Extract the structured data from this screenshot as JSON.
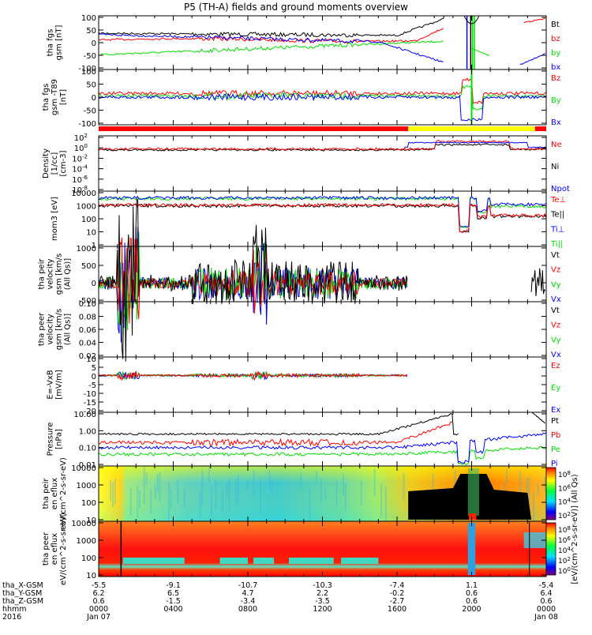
{
  "title": "P5 (TH-A) fields and ground moments overview",
  "time_axis": {
    "tick_hours": [
      0,
      4,
      8,
      12,
      16,
      20,
      24
    ],
    "rows": [
      {
        "label": "tha_X-GSM",
        "values": [
          "-5.5",
          "-9.1",
          "-10.7",
          "-10.3",
          "-7.4",
          "1.1",
          "-5.4"
        ]
      },
      {
        "label": "tha_Y-GSM",
        "values": [
          "6.2",
          "6.5",
          "4.7",
          "2.2",
          "-0.2",
          "0.6",
          "6.4"
        ]
      },
      {
        "label": "tha_Z-GSM",
        "values": [
          "0.6",
          "-1.5",
          "-3.4",
          "-3.5",
          "-2.7",
          "0.6",
          "0.6"
        ]
      },
      {
        "label": "hhmm",
        "values": [
          "0000",
          "0400",
          "0800",
          "1200",
          "1600",
          "2000",
          "0000"
        ]
      },
      {
        "label": "2016",
        "values": [
          "Jan 07",
          "",
          "",
          "",
          "",
          "",
          "Jan 08"
        ]
      }
    ]
  },
  "colors": {
    "black": "#000000",
    "red": "#ff0000",
    "green": "#00e000",
    "blue": "#0000ff",
    "yellow": "#ffff00"
  },
  "chart_data": [
    {
      "type": "line",
      "ylabel": "tha fgs gsm [nT]",
      "ylim": [
        -100,
        100
      ],
      "yticks": [
        "100",
        "50",
        "0",
        "-50",
        "-100"
      ],
      "legend": [
        "Bt",
        "bz",
        "by",
        "bx"
      ],
      "legend_colors": [
        "black",
        "red",
        "green",
        "blue"
      ]
    },
    {
      "type": "line",
      "ylabel": "tha fgs gsm -T89 [nT]",
      "ylim": [
        -120,
        100
      ],
      "yticks": [
        "100",
        "50",
        "0",
        "-50",
        "-100"
      ],
      "legend": [
        "Bz",
        "By",
        "Bx"
      ],
      "legend_colors": [
        "red",
        "green",
        "blue"
      ]
    },
    {
      "type": "bar",
      "flag": [
        {
          "from_hour": 0,
          "to_hour": 16.6,
          "color": "red"
        },
        {
          "from_hour": 16.6,
          "to_hour": 23.4,
          "color": "yellow"
        },
        {
          "from_hour": 23.4,
          "to_hour": 24,
          "color": "red"
        }
      ]
    },
    {
      "type": "line",
      "scale": "log",
      "ylabel": "Density [1/cc] [cm-3]",
      "yticks": [
        "10^2",
        "10^0",
        "10^-2",
        "10^-4",
        "10^-6",
        "10^-8"
      ],
      "legend": [
        "Ne",
        "Ni",
        "Npot"
      ],
      "legend_colors": [
        "red",
        "black",
        "blue"
      ]
    },
    {
      "type": "line",
      "scale": "log",
      "ylabel": "mom3 [eV]",
      "yticks": [
        "10000",
        "1000",
        "100",
        "10",
        "1"
      ],
      "legend": [
        "Te⊥",
        "Te||",
        "Ti⊥",
        "Ti||"
      ],
      "legend_colors": [
        "red",
        "black",
        "blue",
        "green"
      ]
    },
    {
      "type": "line",
      "ylabel": "tha peir velocity gsm [km/s (All Qs)]",
      "ylim": [
        -500,
        1000
      ],
      "yticks": [
        "1000",
        "500",
        "0",
        "-500"
      ],
      "legend": [
        "Vt",
        "Vz",
        "Vy",
        "Vx"
      ],
      "legend_colors": [
        "black",
        "red",
        "green",
        "blue"
      ]
    },
    {
      "type": "line",
      "ylabel": "tha peer velocity gsm [km/s (All Qs)]",
      "ylim": [
        0,
        0.1
      ],
      "yticks": [
        "0.10",
        "0.08",
        "0.06",
        "0.04",
        "0.02"
      ],
      "legend": [
        "Vt",
        "Vz",
        "Vy",
        "Vx"
      ],
      "legend_colors": [
        "black",
        "red",
        "green",
        "blue"
      ]
    },
    {
      "type": "line",
      "ylabel": "E=-VxB [mV/m]",
      "ylim": [
        -20,
        10
      ],
      "yticks": [
        "10",
        "5",
        "0",
        "-5",
        "-10",
        "-15",
        "-20"
      ],
      "legend": [
        "Ez",
        "Ey",
        "Ex"
      ],
      "legend_colors": [
        "red",
        "green",
        "blue"
      ]
    },
    {
      "type": "line",
      "scale": "log",
      "ylabel": "Pressure [nPa]",
      "yticks": [
        "10.00",
        "1.00",
        "0.10",
        "0.01"
      ],
      "legend": [
        "Pt",
        "Pb",
        "Pe",
        "Pi"
      ],
      "legend_colors": [
        "black",
        "red",
        "green",
        "blue"
      ]
    },
    {
      "type": "heatmap",
      "ylabel": "tha peir en eflux eV/(cm^2-s-sr-eV)",
      "yticks": [
        "10000",
        "1000",
        "100",
        "10"
      ],
      "colorbar_ticks": [
        "10^8",
        "10^6",
        "10^4",
        "10^2"
      ]
    },
    {
      "type": "heatmap",
      "ylabel": "tha peer en eflux eV/(cm^2-s-sr-eV)",
      "yticks": [
        "10000",
        "1000",
        "100",
        "10"
      ],
      "colorbar_ticks": [
        "10^8",
        "10^6",
        "10^4",
        "10^2",
        "10^0"
      ]
    }
  ],
  "colorbar_label": "[eV/(cm^2-s-sr-eV)] (All Qs)"
}
